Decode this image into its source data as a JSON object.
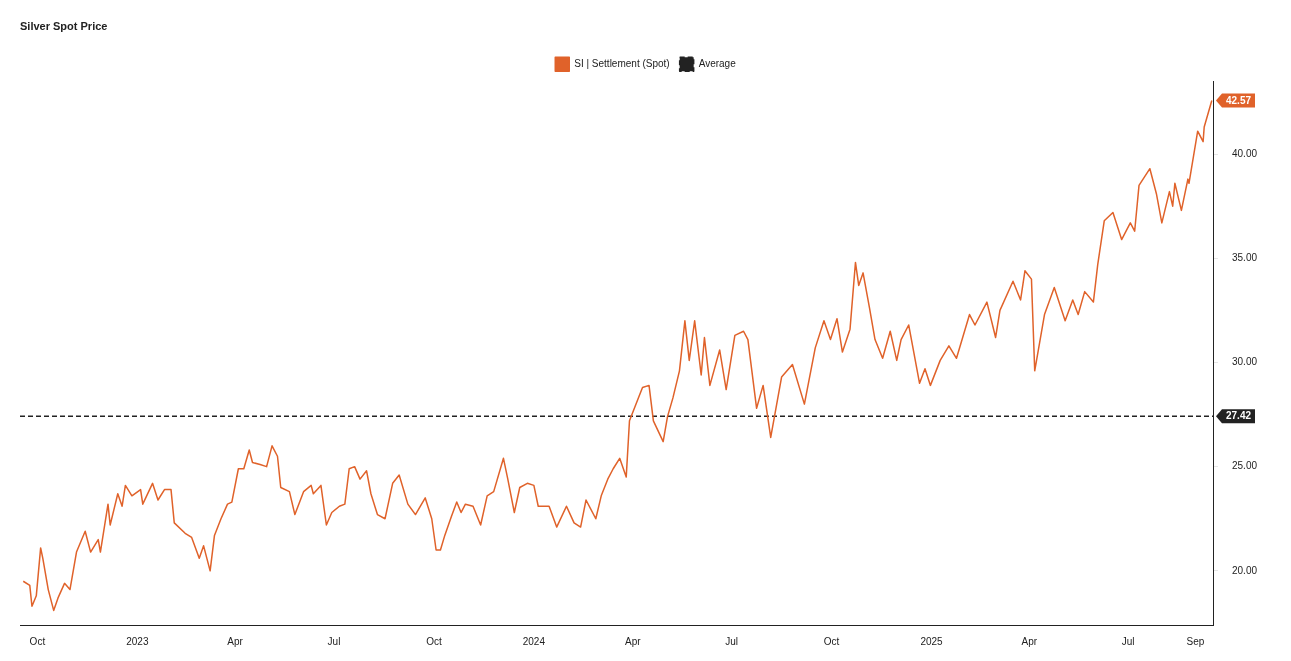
{
  "chart_data": {
    "type": "line",
    "title": "Silver Spot Price",
    "xlim": [
      "2022-09-15",
      "2025-09-18"
    ],
    "xticks": [
      {
        "value": "2022-10-01",
        "label": "Oct"
      },
      {
        "value": "2023-01-01",
        "label": "2023"
      },
      {
        "value": "2023-04-01",
        "label": "Apr"
      },
      {
        "value": "2023-07-01",
        "label": "Jul"
      },
      {
        "value": "2023-10-01",
        "label": "Oct"
      },
      {
        "value": "2024-01-01",
        "label": "2024"
      },
      {
        "value": "2024-04-01",
        "label": "Apr"
      },
      {
        "value": "2024-07-01",
        "label": "Jul"
      },
      {
        "value": "2024-10-01",
        "label": "Oct"
      },
      {
        "value": "2025-01-01",
        "label": "2025"
      },
      {
        "value": "2025-04-01",
        "label": "Apr"
      },
      {
        "value": "2025-07-01",
        "label": "Jul"
      },
      {
        "value": "2025-09-01",
        "label": "Sep"
      }
    ],
    "ylim": [
      17.4,
      43.5
    ],
    "yticks": [
      {
        "value": 20,
        "label": "20.00"
      },
      {
        "value": 25,
        "label": "25.00"
      },
      {
        "value": 30,
        "label": "30.00"
      },
      {
        "value": 35,
        "label": "35.00"
      },
      {
        "value": 40,
        "label": "40.00"
      }
    ],
    "grid": false,
    "legend": "top",
    "marker": "none",
    "series": [
      {
        "name": "SI | Settlement (Spot)",
        "color": "#e0622a",
        "line_style": "solid",
        "x": [
          "2022-09-18",
          "2022-09-24",
          "2022-09-26",
          "2022-09-30",
          "2022-10-04",
          "2022-10-06",
          "2022-10-11",
          "2022-10-16",
          "2022-10-20",
          "2022-10-26",
          "2022-10-31",
          "2022-11-06",
          "2022-11-14",
          "2022-11-19",
          "2022-11-26",
          "2022-11-28",
          "2022-12-05",
          "2022-12-07",
          "2022-12-14",
          "2022-12-18",
          "2022-12-21",
          "2022-12-27",
          "2023-01-04",
          "2023-01-06",
          "2023-01-15",
          "2023-01-20",
          "2023-01-26",
          "2023-02-01",
          "2023-02-04",
          "2023-02-14",
          "2023-02-20",
          "2023-02-27",
          "2023-03-03",
          "2023-03-09",
          "2023-03-13",
          "2023-03-19",
          "2023-03-25",
          "2023-03-29",
          "2023-04-04",
          "2023-04-09",
          "2023-04-14",
          "2023-04-17",
          "2023-04-24",
          "2023-04-30",
          "2023-05-05",
          "2023-05-10",
          "2023-05-13",
          "2023-05-21",
          "2023-05-26",
          "2023-06-03",
          "2023-06-10",
          "2023-06-12",
          "2023-06-19",
          "2023-06-24",
          "2023-06-29",
          "2023-07-06",
          "2023-07-11",
          "2023-07-15",
          "2023-07-20",
          "2023-07-25",
          "2023-07-31",
          "2023-08-04",
          "2023-08-10",
          "2023-08-17",
          "2023-08-24",
          "2023-08-30",
          "2023-09-07",
          "2023-09-14",
          "2023-09-23",
          "2023-09-29",
          "2023-10-03",
          "2023-10-07",
          "2023-10-11",
          "2023-10-17",
          "2023-10-22",
          "2023-10-26",
          "2023-10-30",
          "2023-11-06",
          "2023-11-13",
          "2023-11-19",
          "2023-11-25",
          "2023-12-04",
          "2023-12-08",
          "2023-12-14",
          "2023-12-19",
          "2023-12-26",
          "2024-01-01",
          "2024-01-05",
          "2024-01-15",
          "2024-01-22",
          "2024-01-31",
          "2024-02-07",
          "2024-02-13",
          "2024-02-18",
          "2024-02-27",
          "2024-03-03",
          "2024-03-09",
          "2024-03-14",
          "2024-03-20",
          "2024-03-26",
          "2024-03-29",
          "2024-04-07",
          "2024-04-10",
          "2024-04-16",
          "2024-04-20",
          "2024-04-29",
          "2024-05-03",
          "2024-05-08",
          "2024-05-14",
          "2024-05-19",
          "2024-05-23",
          "2024-05-28",
          "2024-06-03",
          "2024-06-06",
          "2024-06-11",
          "2024-06-20",
          "2024-06-26",
          "2024-07-04",
          "2024-07-12",
          "2024-07-16",
          "2024-07-24",
          "2024-07-30",
          "2024-08-06",
          "2024-08-16",
          "2024-08-26",
          "2024-09-06",
          "2024-09-16",
          "2024-09-24",
          "2024-09-30",
          "2024-10-06",
          "2024-10-11",
          "2024-10-18",
          "2024-10-23",
          "2024-10-26",
          "2024-10-30",
          "2024-11-05",
          "2024-11-10",
          "2024-11-17",
          "2024-11-24",
          "2024-11-30",
          "2024-12-04",
          "2024-12-11",
          "2024-12-21",
          "2024-12-26",
          "2024-12-31",
          "2025-01-09",
          "2025-01-17",
          "2025-01-24",
          "2025-02-05",
          "2025-02-10",
          "2025-02-21",
          "2025-03-01",
          "2025-03-05",
          "2025-03-17",
          "2025-03-24",
          "2025-03-28",
          "2025-04-03",
          "2025-04-06",
          "2025-04-15",
          "2025-04-24",
          "2025-05-04",
          "2025-05-11",
          "2025-05-16",
          "2025-05-22",
          "2025-05-30",
          "2025-06-03",
          "2025-06-09",
          "2025-06-17",
          "2025-06-25",
          "2025-07-03",
          "2025-07-07",
          "2025-07-11",
          "2025-07-21",
          "2025-07-27",
          "2025-08-01",
          "2025-08-08",
          "2025-08-11",
          "2025-08-13",
          "2025-08-19",
          "2025-08-25",
          "2025-08-26",
          "2025-09-03",
          "2025-09-08",
          "2025-09-09",
          "2025-09-16"
        ],
        "values": [
          19.5,
          19.3,
          18.3,
          18.8,
          21.1,
          20.6,
          19.1,
          18.1,
          18.7,
          19.4,
          19.1,
          20.9,
          21.9,
          20.9,
          21.5,
          20.9,
          23.2,
          22.2,
          23.7,
          23.1,
          24.1,
          23.6,
          23.9,
          23.2,
          24.2,
          23.4,
          23.9,
          23.9,
          22.3,
          21.8,
          21.6,
          20.6,
          21.2,
          20.0,
          21.7,
          22.5,
          23.2,
          23.3,
          24.9,
          24.9,
          25.8,
          25.2,
          25.1,
          25.0,
          26.0,
          25.5,
          24.0,
          23.8,
          22.7,
          23.8,
          24.1,
          23.7,
          24.1,
          22.2,
          22.8,
          23.1,
          23.2,
          24.9,
          25.0,
          24.4,
          24.8,
          23.7,
          22.7,
          22.5,
          24.2,
          24.6,
          23.2,
          22.7,
          23.5,
          22.5,
          21.0,
          21.0,
          21.7,
          22.6,
          23.3,
          22.8,
          23.2,
          23.1,
          22.2,
          23.6,
          23.8,
          25.4,
          24.4,
          22.8,
          24.0,
          24.2,
          24.1,
          23.1,
          23.1,
          22.1,
          23.1,
          22.3,
          22.1,
          23.4,
          22.5,
          23.6,
          24.4,
          24.9,
          25.4,
          24.5,
          27.2,
          28.4,
          28.8,
          28.9,
          27.2,
          26.2,
          27.4,
          28.3,
          29.6,
          32.0,
          30.1,
          32.0,
          29.4,
          31.2,
          28.9,
          30.6,
          28.7,
          31.3,
          31.5,
          31.1,
          27.8,
          28.9,
          26.4,
          29.3,
          29.9,
          28.0,
          30.7,
          32.0,
          31.1,
          32.1,
          30.5,
          31.6,
          34.8,
          33.7,
          34.3,
          32.6,
          31.1,
          30.2,
          31.5,
          30.1,
          31.1,
          31.8,
          29.0,
          29.7,
          28.9,
          30.1,
          30.8,
          30.2,
          32.3,
          31.8,
          32.9,
          31.2,
          32.5,
          33.9,
          33.0,
          34.4,
          34.0,
          29.6,
          32.3,
          33.6,
          32.0,
          33.0,
          32.3,
          33.4,
          32.9,
          34.7,
          36.8,
          37.2,
          35.9,
          36.7,
          36.3,
          38.5,
          39.3,
          38.1,
          36.7,
          38.2,
          37.5,
          38.6,
          37.3,
          38.8,
          38.6,
          41.1,
          40.6,
          41.3,
          42.57
        ],
        "value_labels": [
          null,
          null,
          null,
          null,
          null,
          null,
          null,
          null,
          null,
          null,
          null,
          null,
          null,
          null,
          null,
          null,
          null,
          null,
          null,
          null,
          null,
          null,
          null,
          null,
          null,
          null,
          null,
          null,
          null,
          null,
          null,
          null,
          null,
          null,
          null,
          null,
          null,
          null,
          null,
          null,
          null,
          null,
          null,
          null,
          null,
          null,
          null,
          null,
          null,
          null,
          null,
          null,
          null,
          null,
          null,
          null,
          null,
          null,
          null,
          null,
          null,
          null,
          null,
          null,
          null,
          null,
          null,
          null,
          null,
          null,
          null,
          null,
          null,
          null,
          null,
          null,
          null,
          null,
          null,
          null,
          null,
          null,
          null,
          null,
          null,
          null,
          null,
          null,
          null,
          null,
          null,
          null,
          null,
          null,
          null,
          null,
          null,
          null,
          null,
          null,
          null,
          null,
          null,
          null,
          null,
          null,
          null,
          null,
          null,
          null,
          null,
          null,
          null,
          null,
          null,
          null,
          null,
          null,
          null,
          null,
          null,
          null,
          null,
          null,
          null,
          null,
          null,
          null,
          null,
          null,
          null,
          null,
          null,
          null,
          null,
          null,
          null,
          null,
          null,
          null,
          null,
          null,
          null,
          null,
          null,
          null,
          null,
          null,
          null,
          null,
          null,
          null,
          null,
          null,
          null,
          null,
          null,
          null,
          null,
          null,
          null,
          null,
          null,
          null,
          null,
          null,
          null,
          null,
          null,
          null,
          null,
          null,
          null,
          null,
          null,
          null,
          null,
          null,
          null,
          null,
          null,
          null,
          null,
          null,
          "42.57"
        ]
      },
      {
        "name": "Average",
        "color": "#222222",
        "line_style": "dashed",
        "x": [
          "2022-09-15",
          "2025-09-18"
        ],
        "values": [
          27.42,
          27.42
        ],
        "value_labels": [
          null,
          "27.42"
        ]
      }
    ]
  }
}
